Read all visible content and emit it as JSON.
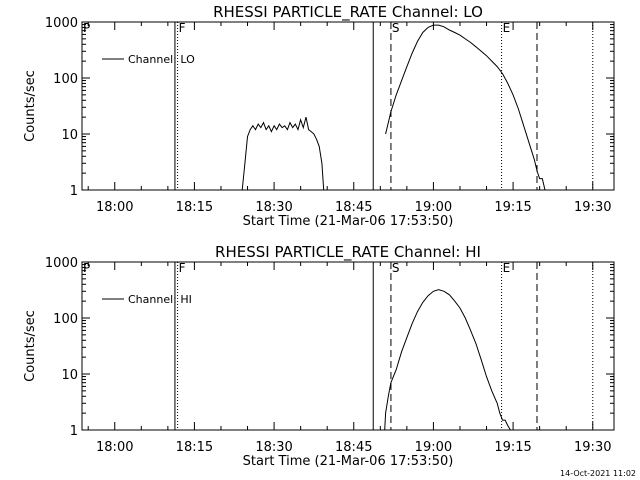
{
  "chart_data": [
    {
      "type": "line",
      "title": "RHESSI PARTICLE_RATE Channel: LO",
      "xlabel": "Start Time (21-Mar-06 17:53:50)",
      "ylabel": "Counts/sec",
      "y_scale": "log",
      "xlim": [
        "17:53:50",
        "19:34:00"
      ],
      "ylim": [
        1,
        1000
      ],
      "x_ticks": [
        "18:00",
        "18:15",
        "18:30",
        "18:45",
        "19:00",
        "19:15",
        "19:30"
      ],
      "y_ticks": [
        "1",
        "10",
        "100",
        "1000"
      ],
      "legend": {
        "position": "top-left",
        "entries": [
          "Channel: LO"
        ]
      },
      "series": [
        {
          "name": "Channel: LO",
          "color": "#000000",
          "segments": [
            [
              [
                "18:24:00",
                1
              ],
              [
                "18:24:30",
                3
              ],
              [
                "18:25:00",
                9
              ],
              [
                "18:25:30",
                12
              ],
              [
                "18:26:00",
                14
              ],
              [
                "18:26:30",
                12
              ],
              [
                "18:27:00",
                15
              ],
              [
                "18:27:30",
                13
              ],
              [
                "18:28:00",
                16
              ],
              [
                "18:28:30",
                12
              ],
              [
                "18:29:00",
                14
              ],
              [
                "18:29:30",
                11
              ],
              [
                "18:30:00",
                14
              ],
              [
                "18:30:30",
                12
              ],
              [
                "18:31:00",
                15
              ],
              [
                "18:31:30",
                13
              ],
              [
                "18:32:00",
                14
              ],
              [
                "18:32:30",
                12
              ],
              [
                "18:33:00",
                16
              ],
              [
                "18:33:30",
                13
              ],
              [
                "18:34:00",
                15
              ],
              [
                "18:34:30",
                12
              ],
              [
                "18:35:00",
                18
              ],
              [
                "18:35:30",
                13
              ],
              [
                "18:36:00",
                20
              ],
              [
                "18:36:30",
                12
              ],
              [
                "18:37:00",
                11
              ],
              [
                "18:37:30",
                10
              ],
              [
                "18:38:00",
                8
              ],
              [
                "18:38:30",
                6
              ],
              [
                "18:39:00",
                3
              ],
              [
                "18:39:20",
                1
              ]
            ],
            [
              [
                "18:51:00",
                10
              ],
              [
                "18:52:00",
                25
              ],
              [
                "18:53:00",
                50
              ],
              [
                "18:54:00",
                90
              ],
              [
                "18:55:00",
                160
              ],
              [
                "18:56:00",
                280
              ],
              [
                "18:57:00",
                450
              ],
              [
                "18:58:00",
                650
              ],
              [
                "18:59:00",
                800
              ],
              [
                "19:00:00",
                880
              ],
              [
                "19:01:00",
                880
              ],
              [
                "19:02:00",
                820
              ],
              [
                "19:03:00",
                720
              ],
              [
                "19:04:00",
                650
              ],
              [
                "19:05:00",
                580
              ],
              [
                "19:06:00",
                500
              ],
              [
                "19:07:00",
                430
              ],
              [
                "19:08:00",
                360
              ],
              [
                "19:09:00",
                300
              ],
              [
                "19:10:00",
                250
              ],
              [
                "19:11:00",
                200
              ],
              [
                "19:12:00",
                160
              ],
              [
                "19:13:00",
                120
              ],
              [
                "19:14:00",
                80
              ],
              [
                "19:15:00",
                50
              ],
              [
                "19:16:00",
                28
              ],
              [
                "19:17:00",
                14
              ],
              [
                "19:18:00",
                7
              ],
              [
                "19:19:00",
                3.5
              ],
              [
                "19:19:30",
                2.2
              ],
              [
                "19:20:00",
                1.6
              ],
              [
                "19:20:30",
                1.6
              ],
              [
                "19:21:00",
                1
              ]
            ]
          ]
        }
      ],
      "markers": {
        "solid": [
          "18:11:20",
          "18:48:40"
        ],
        "dashed": [
          "18:52:00",
          "19:19:30"
        ],
        "dotted": [
          "18:11:50",
          "19:12:50",
          "19:30:00"
        ]
      },
      "flags": [
        {
          "label": "P",
          "x": "17:53:50"
        },
        {
          "label": "F",
          "x": "18:11:50"
        },
        {
          "label": "S",
          "x": "18:52:00"
        },
        {
          "label": "E",
          "x": "19:12:50"
        }
      ]
    },
    {
      "type": "line",
      "title": "RHESSI PARTICLE_RATE Channel: HI",
      "xlabel": "Start Time (21-Mar-06 17:53:50)",
      "ylabel": "Counts/sec",
      "y_scale": "log",
      "xlim": [
        "17:53:50",
        "19:34:00"
      ],
      "ylim": [
        1,
        1000
      ],
      "x_ticks": [
        "18:00",
        "18:15",
        "18:30",
        "18:45",
        "19:00",
        "19:15",
        "19:30"
      ],
      "y_ticks": [
        "1",
        "10",
        "100",
        "1000"
      ],
      "legend": {
        "position": "top-left",
        "entries": [
          "Channel: HI"
        ]
      },
      "series": [
        {
          "name": "Channel: HI",
          "color": "#000000",
          "segments": [
            [
              [
                "18:50:50",
                1
              ],
              [
                "18:51:00",
                2
              ],
              [
                "18:51:30",
                4
              ],
              [
                "18:52:00",
                7
              ],
              [
                "18:53:00",
                12
              ],
              [
                "18:54:00",
                25
              ],
              [
                "18:55:00",
                45
              ],
              [
                "18:56:00",
                80
              ],
              [
                "18:57:00",
                130
              ],
              [
                "18:58:00",
                190
              ],
              [
                "18:59:00",
                250
              ],
              [
                "19:00:00",
                300
              ],
              [
                "19:01:00",
                320
              ],
              [
                "19:02:00",
                300
              ],
              [
                "19:03:00",
                260
              ],
              [
                "19:04:00",
                200
              ],
              [
                "19:05:00",
                150
              ],
              [
                "19:06:00",
                100
              ],
              [
                "19:07:00",
                60
              ],
              [
                "19:08:00",
                35
              ],
              [
                "19:09:00",
                18
              ],
              [
                "19:10:00",
                9
              ],
              [
                "19:11:00",
                5
              ],
              [
                "19:12:00",
                3
              ],
              [
                "19:12:30",
                2
              ],
              [
                "19:13:00",
                1.5
              ],
              [
                "19:13:30",
                1.5
              ],
              [
                "19:14:00",
                1.2
              ],
              [
                "19:14:30",
                1
              ]
            ]
          ]
        }
      ],
      "markers": {
        "solid": [
          "18:11:20",
          "18:48:40"
        ],
        "dashed": [
          "18:52:00",
          "19:19:30"
        ],
        "dotted": [
          "18:11:50",
          "19:12:50",
          "19:30:00"
        ]
      },
      "flags": [
        {
          "label": "P",
          "x": "17:53:50"
        },
        {
          "label": "F",
          "x": "18:11:50"
        },
        {
          "label": "S",
          "x": "18:52:00"
        },
        {
          "label": "E",
          "x": "19:12:50"
        }
      ]
    }
  ],
  "footer": {
    "timestamp": "14-Oct-2021 11:02"
  }
}
